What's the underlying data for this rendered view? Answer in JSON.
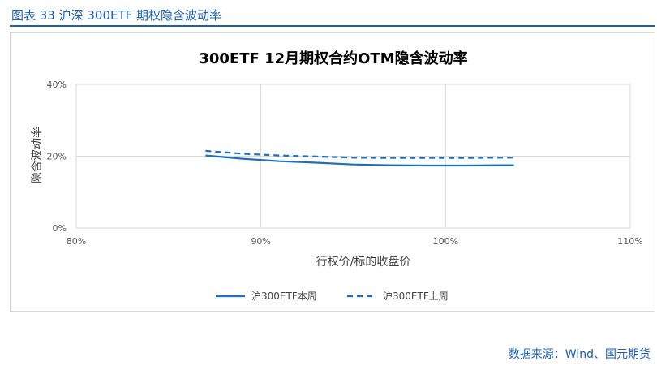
{
  "figure": {
    "title": "图表 33  沪深 300ETF 期权隐含波动率",
    "source": "数据来源：Wind、国元期货"
  },
  "chart_data": {
    "type": "line",
    "title": "300ETF 12月期权合约OTM隐含波动率",
    "xlabel": "行权价/标的收盘价",
    "ylabel": "隐含波动率",
    "xlim": [
      0.8,
      1.1
    ],
    "ylim": [
      0,
      0.4
    ],
    "xticks": [
      0.8,
      0.9,
      1.0,
      1.1
    ],
    "xtick_labels": [
      "80%",
      "90%",
      "100%",
      "110%"
    ],
    "yticks": [
      0,
      0.2,
      0.4
    ],
    "ytick_labels": [
      "0%",
      "20%",
      "40%"
    ],
    "grid": true,
    "legend_position": "bottom",
    "series": [
      {
        "name": "沪300ETF本周",
        "style": "solid",
        "color": "#1f6fba",
        "points": [
          [
            0.87,
            0.202
          ],
          [
            0.89,
            0.193
          ],
          [
            0.91,
            0.186
          ],
          [
            0.93,
            0.182
          ],
          [
            0.95,
            0.177
          ],
          [
            0.97,
            0.175
          ],
          [
            0.99,
            0.174
          ],
          [
            1.01,
            0.174
          ],
          [
            1.03,
            0.175
          ],
          [
            1.037,
            0.175
          ]
        ]
      },
      {
        "name": "沪300ETF上周",
        "style": "dashed",
        "color": "#1f6fba",
        "points": [
          [
            0.87,
            0.215
          ],
          [
            0.89,
            0.207
          ],
          [
            0.91,
            0.202
          ],
          [
            0.93,
            0.199
          ],
          [
            0.95,
            0.196
          ],
          [
            0.97,
            0.195
          ],
          [
            0.99,
            0.195
          ],
          [
            1.01,
            0.195
          ],
          [
            1.03,
            0.196
          ],
          [
            1.037,
            0.196
          ]
        ]
      }
    ]
  }
}
